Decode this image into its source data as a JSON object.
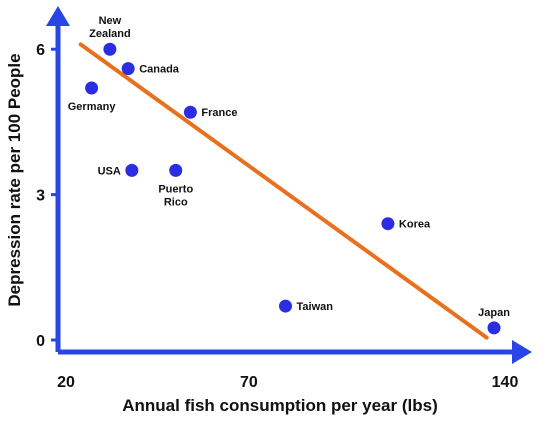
{
  "colors": {
    "axis": "#2a45e6",
    "point": "#2a2ee0",
    "trend": "#e8701e",
    "text": "#111111"
  },
  "chart_data": {
    "type": "scatter",
    "title": "",
    "xlabel": "Annual fish consumption per year (lbs)",
    "ylabel": "Depression rate per 100 People",
    "xlim": [
      20,
      140
    ],
    "ylim": [
      0,
      6.5
    ],
    "x_ticks": [
      {
        "value": 20,
        "label": "20"
      },
      {
        "value": 70,
        "label": "70"
      },
      {
        "value": 140,
        "label": "140"
      }
    ],
    "y_ticks": [
      {
        "value": 0,
        "label": "0"
      },
      {
        "value": 3,
        "label": "3"
      },
      {
        "value": 6,
        "label": "6"
      }
    ],
    "grid": false,
    "legend": "none",
    "points": [
      {
        "label": [
          "New",
          "Zealand"
        ],
        "x": 32,
        "y": 6.0,
        "label_pos": "above"
      },
      {
        "label": [
          "Canada"
        ],
        "x": 37,
        "y": 5.6,
        "label_pos": "right"
      },
      {
        "label": [
          "Germany"
        ],
        "x": 27,
        "y": 5.2,
        "label_pos": "below"
      },
      {
        "label": [
          "France"
        ],
        "x": 54,
        "y": 4.7,
        "label_pos": "right"
      },
      {
        "label": [
          "USA"
        ],
        "x": 38,
        "y": 3.5,
        "label_pos": "left"
      },
      {
        "label": [
          "Puerto",
          "Rico"
        ],
        "x": 50,
        "y": 3.5,
        "label_pos": "below"
      },
      {
        "label": [
          "Korea"
        ],
        "x": 108,
        "y": 2.4,
        "label_pos": "right"
      },
      {
        "label": [
          "Taiwan"
        ],
        "x": 80,
        "y": 0.7,
        "label_pos": "right"
      },
      {
        "label": [
          "Japan"
        ],
        "x": 137,
        "y": 0.25,
        "label_pos": "above"
      }
    ],
    "trendline": {
      "x": [
        24,
        135
      ],
      "y": [
        6.1,
        0.05
      ]
    }
  }
}
